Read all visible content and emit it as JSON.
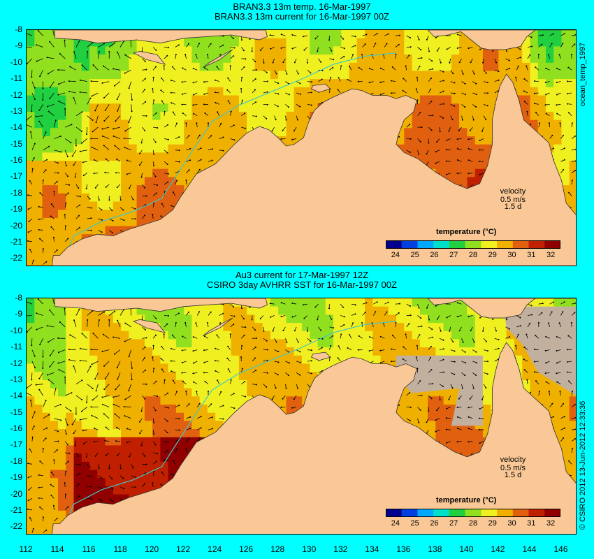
{
  "top_panel": {
    "title_line1": "BRAN3.3 13m temp. 16-Mar-1997",
    "title_line2": "BRAN3.3 13m current for 16-Mar-1997 00Z",
    "velocity_label": "velocity",
    "velocity_speed": "0.5 m/s",
    "velocity_days": "1.5 d",
    "colorbar_label": "temperature (°C)",
    "side_label": "ocean_temp_1997"
  },
  "bottom_panel": {
    "title_line1": "Au3 current for 17-Mar-1997 12Z",
    "title_line2": "CSIRO 3day AVHRR SST for 16-Mar-1997 00Z",
    "velocity_label": "velocity",
    "velocity_speed": "0.5 m/s",
    "velocity_days": "1.5 d",
    "colorbar_label": "temperature (°C)",
    "side_label": "© CSIRO 2012  13-Jun-2012 12:33:36"
  },
  "colors": {
    "frame_background": "#00ffff",
    "land": "#f9c896",
    "cloud_mask": "#c2b09e",
    "colorbar": [
      "#00008c",
      "#0040e0",
      "#00a8ff",
      "#00e0c8",
      "#20d040",
      "#90e020",
      "#f0f020",
      "#f0b000",
      "#e06010",
      "#c02000",
      "#900000"
    ]
  },
  "chart_data": {
    "type": "heatmap",
    "x_ticks": [
      112,
      114,
      116,
      118,
      120,
      122,
      124,
      126,
      128,
      130,
      132,
      134,
      136,
      138,
      140,
      142,
      144,
      146
    ],
    "y_ticks": [
      -8,
      -9,
      -10,
      -11,
      -12,
      -13,
      -14,
      -15,
      -16,
      -17,
      -18,
      -19,
      -20,
      -21,
      -22
    ],
    "xlim": [
      112,
      147
    ],
    "ylim": [
      -22.5,
      -8
    ],
    "colorbar_ticks": [
      24,
      25,
      26,
      27,
      28,
      29,
      30,
      31,
      32
    ],
    "colorbar_range": [
      23.5,
      32.5
    ]
  }
}
